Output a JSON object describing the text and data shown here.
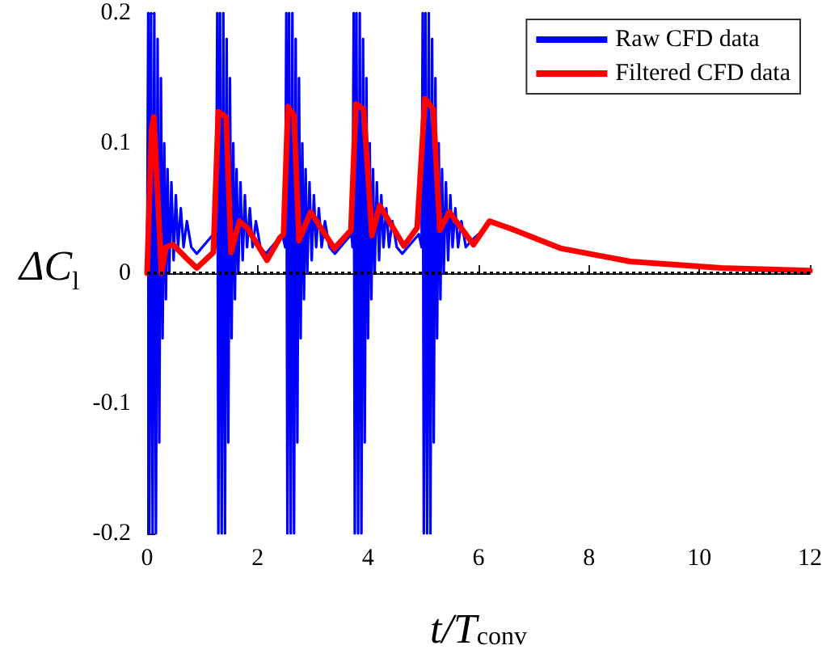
{
  "chart_data": {
    "type": "line",
    "xlabel": "t/T$_{conv}$",
    "ylabel": "ΔC$_{l}$",
    "xlim": [
      0,
      12
    ],
    "xticks": [
      0,
      2,
      4,
      6,
      8,
      10,
      12
    ],
    "ylim": [
      -0.2,
      0.2
    ],
    "yticks": [
      -0.2,
      -0.1,
      0,
      0.1,
      0.2
    ],
    "grid": false,
    "legend": "top right",
    "marker": "none",
    "line_style": "solid",
    "ref_lines": [
      {
        "axis": "y",
        "value": 0,
        "color": "#000000",
        "line_style": "dotted"
      }
    ],
    "series": [
      {
        "name": "Raw CFD data",
        "color": "#0000ff",
        "x": [
          0,
          0.02,
          0.04,
          0.07,
          0.1,
          0.13,
          0.16,
          0.19,
          0.22,
          0.25,
          0.28,
          0.31,
          0.34,
          0.37,
          0.4,
          0.44,
          0.48,
          0.52,
          0.56,
          0.61,
          0.66,
          0.72,
          0.8,
          0.9,
          1.0,
          1.1,
          1.2,
          1.25,
          1.27,
          1.29,
          1.32,
          1.35,
          1.38,
          1.41,
          1.44,
          1.47,
          1.5,
          1.53,
          1.56,
          1.59,
          1.62,
          1.65,
          1.69,
          1.73,
          1.77,
          1.81,
          1.86,
          1.91,
          1.97,
          2.05,
          2.15,
          2.25,
          2.35,
          2.45,
          2.5,
          2.52,
          2.54,
          2.57,
          2.6,
          2.63,
          2.66,
          2.69,
          2.72,
          2.75,
          2.78,
          2.81,
          2.84,
          2.87,
          2.9,
          2.94,
          2.98,
          3.02,
          3.06,
          3.11,
          3.16,
          3.22,
          3.3,
          3.4,
          3.5,
          3.6,
          3.7,
          3.72,
          3.74,
          3.76,
          3.79,
          3.82,
          3.85,
          3.88,
          3.91,
          3.94,
          3.97,
          4.0,
          4.03,
          4.06,
          4.09,
          4.12,
          4.16,
          4.2,
          4.24,
          4.28,
          4.33,
          4.38,
          4.44,
          4.52,
          4.62,
          4.72,
          4.82,
          4.92,
          4.97,
          4.99,
          5.01,
          5.04,
          5.07,
          5.1,
          5.13,
          5.16,
          5.19,
          5.22,
          5.25,
          5.28,
          5.31,
          5.34,
          5.37,
          5.41,
          5.45,
          5.49,
          5.53,
          5.58,
          5.63,
          5.69,
          5.77,
          5.87,
          6.0
        ],
        "values": [
          0,
          0.2,
          -0.2,
          0.2,
          -0.2,
          0.2,
          -0.2,
          0.18,
          -0.13,
          0.15,
          -0.05,
          0.1,
          -0.02,
          0.08,
          0,
          0.07,
          0.01,
          0.06,
          0.02,
          0.05,
          0.02,
          0.04,
          0.02,
          0.015,
          0.02,
          0.025,
          0.03,
          0.02,
          0.2,
          -0.2,
          0.2,
          -0.2,
          0.2,
          -0.2,
          0.18,
          -0.13,
          0.15,
          -0.05,
          0.1,
          -0.02,
          0.08,
          0,
          0.07,
          0.01,
          0.06,
          0.02,
          0.05,
          0.02,
          0.04,
          0.02,
          0.015,
          0.02,
          0.025,
          0.03,
          0.02,
          0.2,
          -0.2,
          0.2,
          -0.2,
          0.2,
          -0.2,
          0.18,
          -0.13,
          0.15,
          -0.05,
          0.1,
          -0.02,
          0.08,
          0,
          0.07,
          0.01,
          0.06,
          0.02,
          0.05,
          0.02,
          0.04,
          0.02,
          0.015,
          0.02,
          0.025,
          0.03,
          0.02,
          0.2,
          -0.2,
          0.2,
          -0.2,
          0.2,
          -0.2,
          0.18,
          -0.13,
          0.15,
          -0.05,
          0.1,
          -0.02,
          0.08,
          0,
          0.07,
          0.01,
          0.06,
          0.02,
          0.05,
          0.02,
          0.04,
          0.02,
          0.015,
          0.02,
          0.025,
          0.03,
          0.02,
          0.2,
          -0.2,
          0.2,
          -0.2,
          0.2,
          -0.2,
          0.18,
          -0.13,
          0.15,
          -0.05,
          0.1,
          -0.02,
          0.08,
          0,
          0.07,
          0.01,
          0.06,
          0.02,
          0.05,
          0.02,
          0.04,
          0.02,
          0.025,
          0.03
        ]
      },
      {
        "name": "Filtered CFD data",
        "color": "#ff0000",
        "x": [
          0,
          0.08,
          0.12,
          0.18,
          0.26,
          0.34,
          0.47,
          0.7,
          0.9,
          1.2,
          1.29,
          1.43,
          1.52,
          1.67,
          1.81,
          2.17,
          2.4,
          2.47,
          2.55,
          2.66,
          2.75,
          2.96,
          3.39,
          3.69,
          3.78,
          3.92,
          4.07,
          4.21,
          4.65,
          4.89,
          5.03,
          5.18,
          5.3,
          5.47,
          5.91,
          6.2,
          6.6,
          7.5,
          8.75,
          10.4,
          12
        ],
        "values": [
          0,
          0.11,
          0.12,
          0.07,
          0,
          0.02,
          0.022,
          0.012,
          0.004,
          0.016,
          0.124,
          0.12,
          0.016,
          0.04,
          0.035,
          0.01,
          0.027,
          0.03,
          0.128,
          0.121,
          0.025,
          0.047,
          0.019,
          0.033,
          0.13,
          0.126,
          0.029,
          0.052,
          0.021,
          0.035,
          0.134,
          0.126,
          0.033,
          0.047,
          0.022,
          0.04,
          0.034,
          0.019,
          0.009,
          0.004,
          0.002
        ]
      }
    ]
  }
}
